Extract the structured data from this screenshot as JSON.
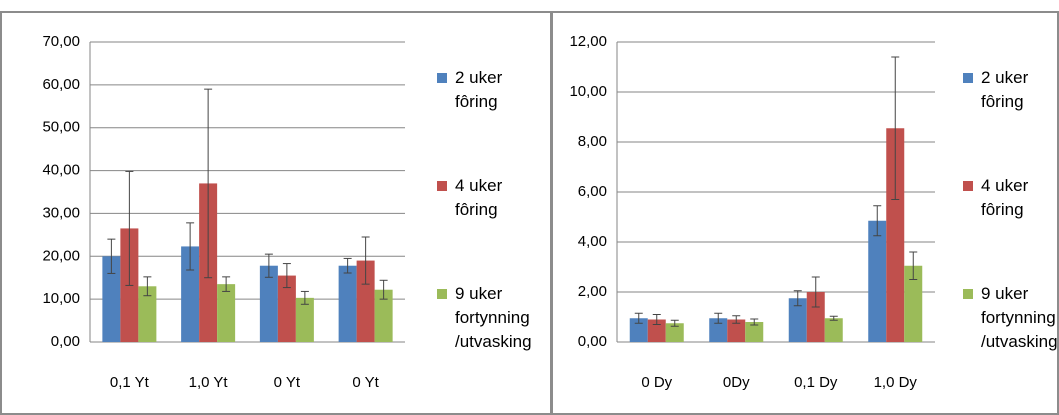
{
  "chart_data": [
    {
      "type": "bar",
      "categories": [
        "0,1 Yt",
        "1,0 Yt",
        "0 Yt",
        "0 Yt"
      ],
      "series": [
        {
          "name": "2 uker fôring",
          "color": "#4f81bd",
          "values": [
            20,
            22.3,
            17.8,
            17.8
          ],
          "errors": [
            4,
            5.5,
            2.7,
            1.7
          ]
        },
        {
          "name": "4 uker fôring",
          "color": "#c0504d",
          "values": [
            26.5,
            37,
            15.5,
            19
          ],
          "errors": [
            13.3,
            22,
            2.8,
            5.5
          ]
        },
        {
          "name": "9 uker fortynning /utvasking",
          "color": "#9bbb59",
          "values": [
            13,
            13.5,
            10.3,
            12.2
          ],
          "errors": [
            2.2,
            1.7,
            1.5,
            2.2
          ]
        }
      ],
      "ylim": [
        0,
        70
      ],
      "yticks": [
        {
          "value": 0,
          "label": "0,00"
        },
        {
          "value": 10,
          "label": "10,00"
        },
        {
          "value": 20,
          "label": "20,00"
        },
        {
          "value": 30,
          "label": "30,00"
        },
        {
          "value": 40,
          "label": "40,00"
        },
        {
          "value": 50,
          "label": "50,00"
        },
        {
          "value": 60,
          "label": "60,00"
        },
        {
          "value": 70,
          "label": "70,00"
        }
      ],
      "grid": true,
      "legend": "right"
    },
    {
      "type": "bar",
      "categories": [
        "0 Dy",
        "0Dy",
        "0,1 Dy",
        "1,0 Dy"
      ],
      "series": [
        {
          "name": "2 uker fôring",
          "color": "#4f81bd",
          "values": [
            0.95,
            0.95,
            1.75,
            4.85
          ],
          "errors": [
            0.2,
            0.2,
            0.3,
            0.6
          ]
        },
        {
          "name": "4 uker fôring",
          "color": "#c0504d",
          "values": [
            0.9,
            0.9,
            2.0,
            8.55
          ],
          "errors": [
            0.2,
            0.15,
            0.6,
            2.85
          ]
        },
        {
          "name": "9 uker fortynning /utvasking",
          "color": "#9bbb59",
          "values": [
            0.75,
            0.8,
            0.95,
            3.05
          ],
          "errors": [
            0.12,
            0.12,
            0.08,
            0.55
          ]
        }
      ],
      "ylim": [
        0,
        12
      ],
      "yticks": [
        {
          "value": 0,
          "label": "0,00"
        },
        {
          "value": 2,
          "label": "2,00"
        },
        {
          "value": 4,
          "label": "4,00"
        },
        {
          "value": 6,
          "label": "6,00"
        },
        {
          "value": 8,
          "label": "8,00"
        },
        {
          "value": 10,
          "label": "10,00"
        },
        {
          "value": 12,
          "label": "12,00"
        }
      ],
      "grid": true,
      "legend": "right"
    }
  ]
}
